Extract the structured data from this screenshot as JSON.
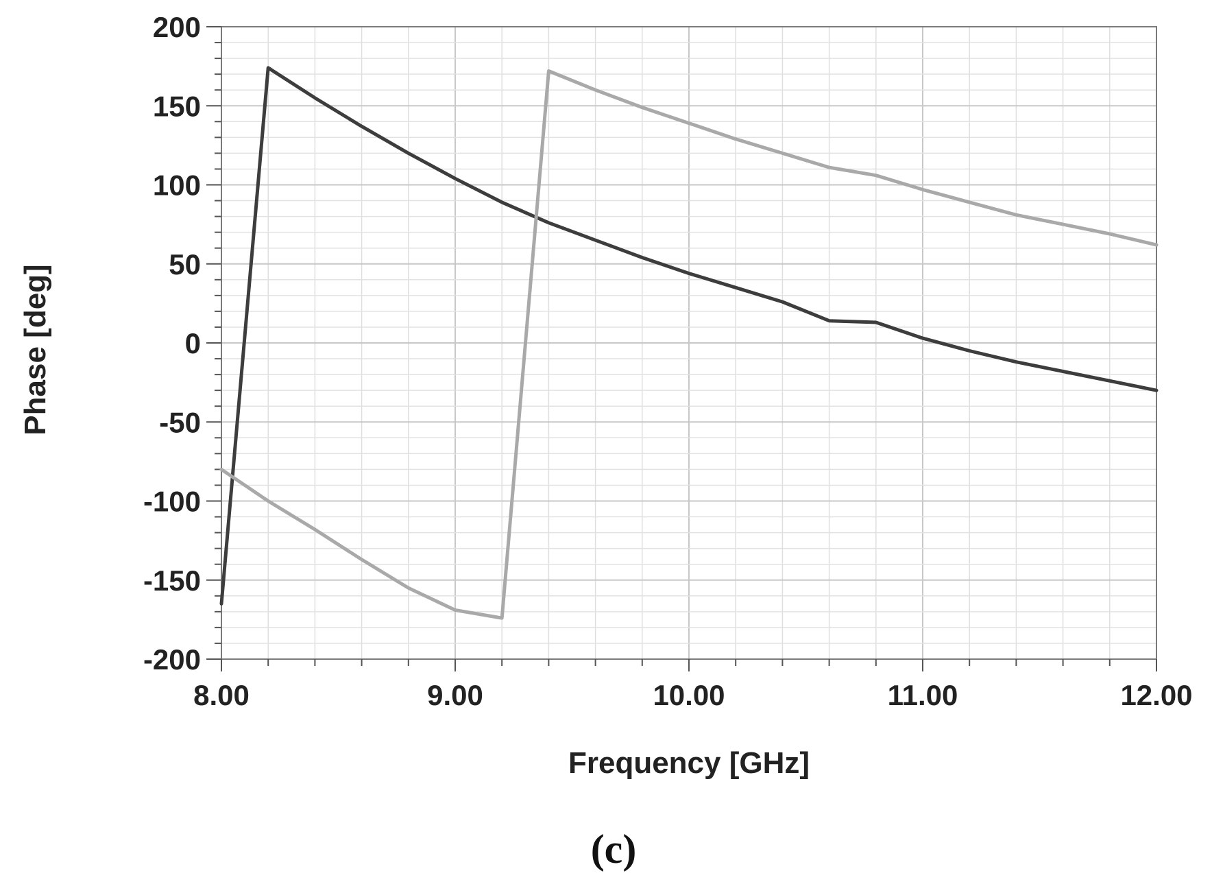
{
  "chart_data": {
    "type": "line",
    "xlabel": "Frequency [GHz]",
    "ylabel": "Phase [deg]",
    "panel_label": "(c)",
    "xlim": [
      8.0,
      12.0
    ],
    "ylim": [
      -200,
      200
    ],
    "x_ticks": [
      8.0,
      9.0,
      10.0,
      11.0,
      12.0
    ],
    "x_tick_labels": [
      "8.00",
      "9.00",
      "10.00",
      "11.00",
      "12.00"
    ],
    "y_ticks": [
      200,
      150,
      100,
      50,
      0,
      -50,
      -100,
      -150,
      -200
    ],
    "y_tick_labels": [
      "200",
      "150",
      "100",
      "50",
      "0",
      "-50",
      "-100",
      "-150",
      "-200"
    ],
    "grid": true,
    "series": [
      {
        "color": "#3d3d3d",
        "points": [
          [
            8.0,
            -165
          ],
          [
            8.2,
            174
          ],
          [
            8.4,
            155
          ],
          [
            8.6,
            137
          ],
          [
            8.8,
            120
          ],
          [
            9.0,
            104
          ],
          [
            9.2,
            89
          ],
          [
            9.4,
            76
          ],
          [
            9.6,
            65
          ],
          [
            9.8,
            54
          ],
          [
            10.0,
            44
          ],
          [
            10.2,
            35
          ],
          [
            10.4,
            26
          ],
          [
            10.6,
            14
          ],
          [
            10.8,
            13
          ],
          [
            11.0,
            3
          ],
          [
            11.2,
            -5
          ],
          [
            11.4,
            -12
          ],
          [
            11.6,
            -18
          ],
          [
            11.8,
            -24
          ],
          [
            12.0,
            -30
          ]
        ]
      },
      {
        "color": "#a9a9a9",
        "points": [
          [
            8.0,
            -80
          ],
          [
            8.2,
            -100
          ],
          [
            8.4,
            -118
          ],
          [
            8.6,
            -137
          ],
          [
            8.8,
            -155
          ],
          [
            9.0,
            -169
          ],
          [
            9.2,
            -174
          ],
          [
            9.4,
            172
          ],
          [
            9.6,
            160
          ],
          [
            9.8,
            149
          ],
          [
            10.0,
            139
          ],
          [
            10.2,
            129
          ],
          [
            10.4,
            120
          ],
          [
            10.6,
            111
          ],
          [
            10.8,
            106
          ],
          [
            11.0,
            97
          ],
          [
            11.2,
            89
          ],
          [
            11.4,
            81
          ],
          [
            11.6,
            75
          ],
          [
            11.8,
            69
          ],
          [
            12.0,
            62
          ]
        ]
      }
    ]
  }
}
